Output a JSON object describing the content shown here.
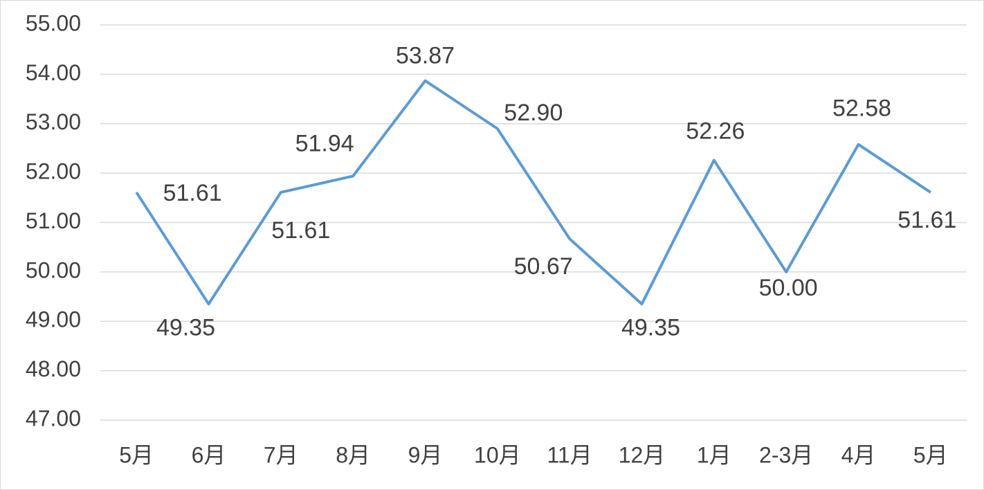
{
  "chart_data": {
    "type": "line",
    "categories": [
      "5月",
      "6月",
      "7月",
      "8月",
      "9月",
      "10月",
      "11月",
      "12月",
      "1月",
      "2-3月",
      "4月",
      "5月"
    ],
    "series": [
      {
        "color": "#5b9bd5",
        "values": [
          51.61,
          49.35,
          51.61,
          51.94,
          53.87,
          52.9,
          50.67,
          49.35,
          52.26,
          50.0,
          52.58,
          51.61
        ],
        "value_labels": [
          "51.61",
          "49.35",
          "51.61",
          "51.94",
          "53.87",
          "52.90",
          "50.67",
          "49.35",
          "52.26",
          "50.00",
          "52.58",
          "51.61"
        ]
      }
    ],
    "ylim": [
      47,
      55
    ],
    "yticks": [
      {
        "value": 47,
        "label": "47.00"
      },
      {
        "value": 48,
        "label": "48.00"
      },
      {
        "value": 49,
        "label": "49.00"
      },
      {
        "value": 50,
        "label": "50.00"
      },
      {
        "value": 51,
        "label": "51.00"
      },
      {
        "value": 52,
        "label": "52.00"
      },
      {
        "value": 53,
        "label": "53.00"
      },
      {
        "value": 54,
        "label": "54.00"
      },
      {
        "value": 55,
        "label": "55.00"
      }
    ],
    "grid": true
  }
}
